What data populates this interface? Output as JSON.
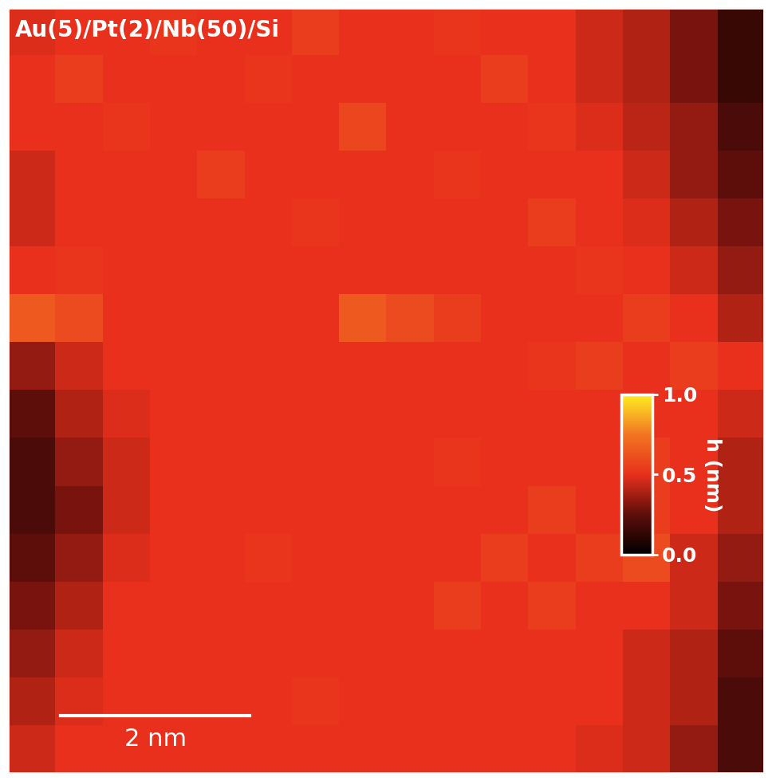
{
  "chart_data": {
    "type": "heatmap",
    "title": "Au(5)/Pt(2)/Nb(50)/Si",
    "xlim": [
      0,
      8
    ],
    "ylim": [
      0,
      8
    ],
    "tick_labels": false,
    "scale_bar": {
      "length": 2,
      "label": "2 nm"
    },
    "colorbar": {
      "label": "h (nm)",
      "range": [
        0,
        1.0
      ],
      "ticks": [
        {
          "value": 0.0,
          "label": "0.0"
        },
        {
          "value": 0.5,
          "label": "0.5"
        },
        {
          "value": 1.0,
          "label": "1.0"
        }
      ]
    },
    "cells": [
      [
        0.48,
        0.5,
        0.5,
        0.52,
        0.5,
        0.5,
        0.55,
        0.5,
        0.5,
        0.52,
        0.5,
        0.5,
        0.45,
        0.4,
        0.3,
        0.15
      ],
      [
        0.5,
        0.55,
        0.5,
        0.5,
        0.5,
        0.52,
        0.5,
        0.5,
        0.5,
        0.5,
        0.55,
        0.5,
        0.45,
        0.4,
        0.3,
        0.15
      ],
      [
        0.5,
        0.5,
        0.52,
        0.5,
        0.5,
        0.5,
        0.5,
        0.58,
        0.5,
        0.5,
        0.5,
        0.52,
        0.48,
        0.42,
        0.35,
        0.2
      ],
      [
        0.45,
        0.5,
        0.5,
        0.5,
        0.55,
        0.5,
        0.5,
        0.5,
        0.5,
        0.52,
        0.5,
        0.5,
        0.5,
        0.45,
        0.35,
        0.25
      ],
      [
        0.45,
        0.5,
        0.5,
        0.5,
        0.5,
        0.5,
        0.52,
        0.5,
        0.5,
        0.5,
        0.5,
        0.55,
        0.5,
        0.48,
        0.4,
        0.3
      ],
      [
        0.5,
        0.52,
        0.5,
        0.5,
        0.5,
        0.5,
        0.5,
        0.5,
        0.5,
        0.5,
        0.5,
        0.5,
        0.52,
        0.5,
        0.45,
        0.35
      ],
      [
        0.65,
        0.6,
        0.5,
        0.5,
        0.5,
        0.5,
        0.5,
        0.65,
        0.6,
        0.55,
        0.5,
        0.5,
        0.5,
        0.55,
        0.5,
        0.4
      ],
      [
        0.35,
        0.45,
        0.5,
        0.5,
        0.5,
        0.5,
        0.5,
        0.5,
        0.5,
        0.5,
        0.5,
        0.52,
        0.55,
        0.5,
        0.55,
        0.5
      ],
      [
        0.25,
        0.4,
        0.48,
        0.5,
        0.5,
        0.5,
        0.5,
        0.5,
        0.5,
        0.5,
        0.5,
        0.5,
        0.5,
        0.5,
        0.5,
        0.45
      ],
      [
        0.2,
        0.35,
        0.45,
        0.5,
        0.5,
        0.5,
        0.5,
        0.5,
        0.5,
        0.52,
        0.5,
        0.5,
        0.5,
        0.55,
        0.5,
        0.4
      ],
      [
        0.2,
        0.3,
        0.45,
        0.5,
        0.5,
        0.5,
        0.5,
        0.5,
        0.5,
        0.5,
        0.5,
        0.55,
        0.5,
        0.55,
        0.5,
        0.4
      ],
      [
        0.25,
        0.35,
        0.48,
        0.5,
        0.5,
        0.52,
        0.5,
        0.5,
        0.5,
        0.5,
        0.55,
        0.5,
        0.55,
        0.6,
        0.45,
        0.35
      ],
      [
        0.3,
        0.4,
        0.5,
        0.5,
        0.5,
        0.5,
        0.5,
        0.5,
        0.5,
        0.55,
        0.5,
        0.55,
        0.5,
        0.5,
        0.45,
        0.3
      ],
      [
        0.35,
        0.45,
        0.5,
        0.5,
        0.5,
        0.5,
        0.5,
        0.5,
        0.5,
        0.5,
        0.5,
        0.5,
        0.5,
        0.45,
        0.4,
        0.25
      ],
      [
        0.4,
        0.48,
        0.5,
        0.5,
        0.5,
        0.5,
        0.52,
        0.5,
        0.5,
        0.5,
        0.5,
        0.5,
        0.5,
        0.45,
        0.4,
        0.2
      ],
      [
        0.45,
        0.5,
        0.5,
        0.5,
        0.5,
        0.5,
        0.5,
        0.5,
        0.5,
        0.5,
        0.5,
        0.5,
        0.48,
        0.45,
        0.35,
        0.2
      ]
    ]
  }
}
